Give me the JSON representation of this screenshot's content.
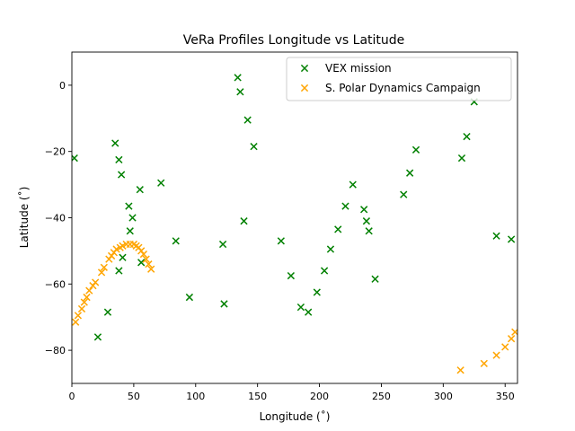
{
  "chart_data": {
    "type": "scatter",
    "title": "VeRa Profiles Longitude vs Latitude",
    "xlabel": "Longitude (˚)",
    "ylabel": "Latitude (˚)",
    "xlim": [
      0,
      360
    ],
    "ylim": [
      -90,
      10
    ],
    "x_ticks": [
      0,
      50,
      100,
      150,
      200,
      250,
      300,
      350
    ],
    "y_ticks": [
      -80,
      -60,
      -40,
      -20,
      0
    ],
    "grid": false,
    "legend_position": "upper right",
    "series": [
      {
        "name": "VEX mission",
        "color": "#008000",
        "marker": "x",
        "points": [
          [
            2,
            -22
          ],
          [
            21,
            -76
          ],
          [
            29,
            -68.5
          ],
          [
            35,
            -17.5
          ],
          [
            38,
            -22.5
          ],
          [
            38,
            -56
          ],
          [
            40,
            -27
          ],
          [
            41,
            -52
          ],
          [
            46,
            -36.5
          ],
          [
            47,
            -44
          ],
          [
            49,
            -40
          ],
          [
            55,
            -31.5
          ],
          [
            56,
            -53.5
          ],
          [
            72,
            -29.5
          ],
          [
            84,
            -47
          ],
          [
            95,
            -64
          ],
          [
            122,
            -48
          ],
          [
            123,
            -66
          ],
          [
            134,
            2.3
          ],
          [
            136,
            -2
          ],
          [
            139,
            -41
          ],
          [
            142,
            -10.5
          ],
          [
            147,
            -18.5
          ],
          [
            169,
            -47
          ],
          [
            177,
            -57.5
          ],
          [
            185,
            -67
          ],
          [
            191,
            -68.5
          ],
          [
            198,
            -62.5
          ],
          [
            204,
            -56
          ],
          [
            209,
            -49.5
          ],
          [
            215,
            -43.5
          ],
          [
            221,
            -36.5
          ],
          [
            227,
            -30
          ],
          [
            236,
            -37.5
          ],
          [
            238,
            -41
          ],
          [
            240,
            -44
          ],
          [
            245,
            -58.5
          ],
          [
            268,
            -33
          ],
          [
            273,
            -26.5
          ],
          [
            278,
            -19.5
          ],
          [
            315,
            -22
          ],
          [
            319,
            -15.5
          ],
          [
            325,
            -5
          ],
          [
            343,
            -45.5
          ],
          [
            355,
            -46.5
          ]
        ]
      },
      {
        "name": "S. Polar Dynamics Campaign",
        "color": "#ffa500",
        "marker": "x",
        "points": [
          [
            3,
            -71.5
          ],
          [
            5,
            -69.5
          ],
          [
            8,
            -67.5
          ],
          [
            10,
            -65.5
          ],
          [
            12,
            -64
          ],
          [
            14,
            -62
          ],
          [
            17,
            -60.5
          ],
          [
            19,
            -59.5
          ],
          [
            24,
            -56.5
          ],
          [
            26,
            -55
          ],
          [
            30,
            -52.5
          ],
          [
            32,
            -51.5
          ],
          [
            34,
            -50.5
          ],
          [
            36,
            -49.5
          ],
          [
            39,
            -49
          ],
          [
            41,
            -48.5
          ],
          [
            44,
            -48
          ],
          [
            47,
            -48
          ],
          [
            50,
            -48
          ],
          [
            52,
            -48.5
          ],
          [
            54,
            -49
          ],
          [
            56,
            -50
          ],
          [
            58,
            -51
          ],
          [
            60,
            -52.5
          ],
          [
            62,
            -54
          ],
          [
            64,
            -55.5
          ],
          [
            314,
            -86
          ],
          [
            333,
            -84
          ],
          [
            343,
            -81.5
          ],
          [
            350,
            -79
          ],
          [
            355,
            -76.5
          ],
          [
            358,
            -74.5
          ]
        ]
      }
    ]
  }
}
